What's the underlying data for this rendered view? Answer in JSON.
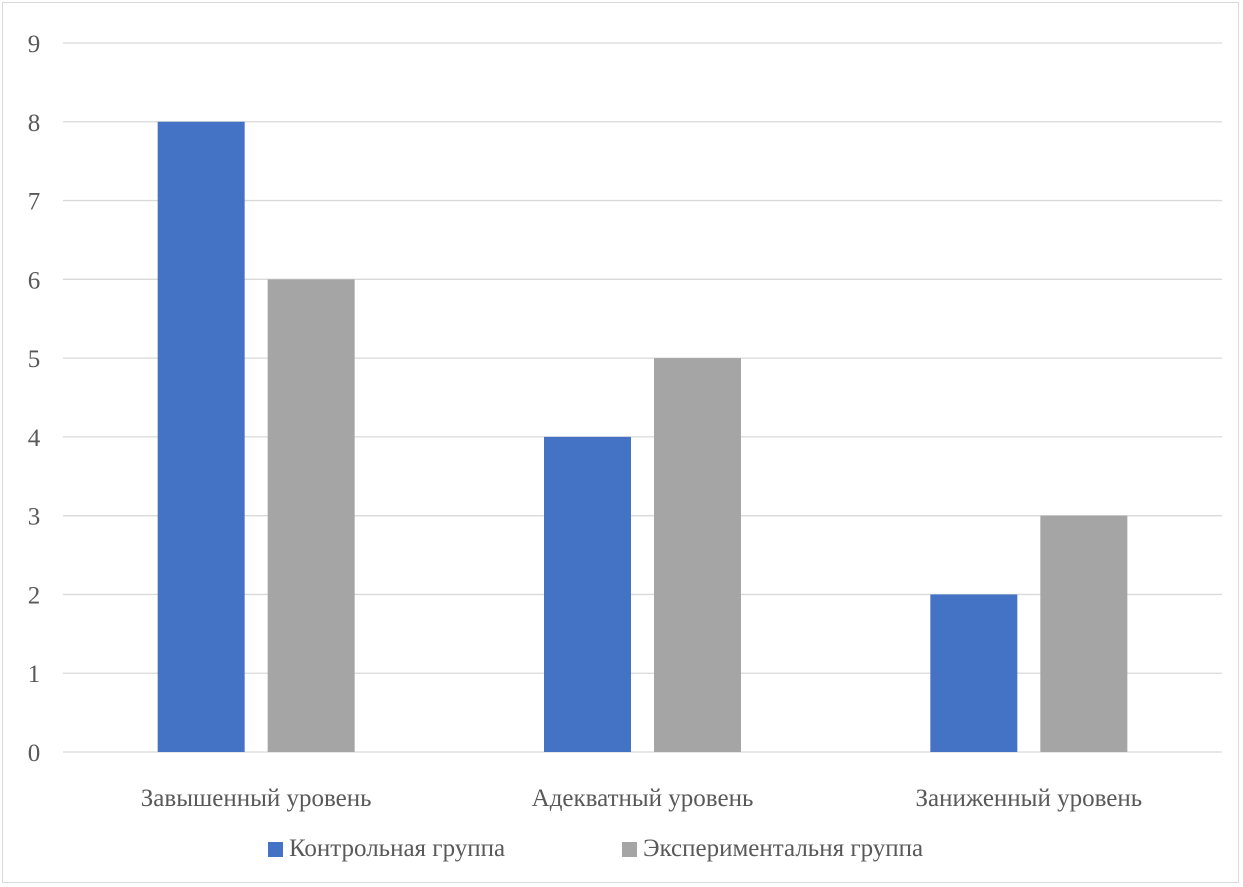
{
  "chart_data": {
    "type": "bar",
    "title": "",
    "xlabel": "",
    "ylabel": "",
    "categories": [
      "Завышенный уровень",
      "Адекватный уровень",
      "Заниженный уровень"
    ],
    "series": [
      {
        "name": "Контрольная группа",
        "values": [
          8,
          4,
          2
        ],
        "color": "#4472c4"
      },
      {
        "name": "Экспериментальня группа",
        "values": [
          6,
          5,
          3
        ],
        "color": "#a5a5a5"
      }
    ],
    "ylim": [
      0,
      9
    ],
    "yticks": [
      "0",
      "1",
      "2",
      "3",
      "4",
      "5",
      "6",
      "7",
      "8",
      "9"
    ],
    "grid": true,
    "legend_position": "bottom",
    "colors": {
      "gridline": "#d9d9d9",
      "text": "#595959"
    }
  }
}
